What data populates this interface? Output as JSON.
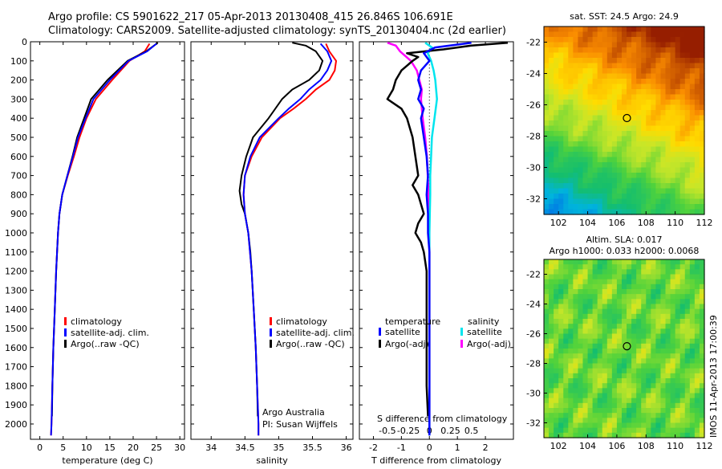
{
  "header": {
    "line1": "Argo profile: CS 5901622_217 05-Apr-2013 20130408_415 26.846S 106.691E",
    "line2": "Climatology: CARS2009. Satellite-adjusted climatology: synTS_20130404.nc (2d earlier)"
  },
  "colors": {
    "climatology": "#ff0000",
    "satellite": "#0000ff",
    "argo": "#000000",
    "sat_sal": "#00e5ee",
    "argo_sal": "#ff00ff"
  },
  "depth_ticks": [
    "0",
    "100",
    "200",
    "300",
    "400",
    "500",
    "600",
    "700",
    "800",
    "900",
    "1000",
    "1100",
    "1200",
    "1300",
    "1400",
    "1500",
    "1600",
    "1700",
    "1800",
    "1900",
    "2000"
  ],
  "chart_data": [
    {
      "type": "line",
      "xlabel": "temperature (deg C)",
      "xlim": [
        -2,
        31
      ],
      "ylim": [
        0,
        2080
      ],
      "y_inverted": true,
      "xticks": [
        "0",
        "5",
        "10",
        "15",
        "20",
        "25",
        "30"
      ],
      "legend": [
        "climatology",
        "satellite-adj. clim.",
        "Argo(..raw -QC)"
      ],
      "series": [
        {
          "name": "climatology",
          "depth": [
            10,
            50,
            100,
            200,
            300,
            400,
            500,
            600,
            700,
            800,
            900,
            1000,
            1200,
            1400,
            1600,
            1800,
            2000,
            2060
          ],
          "values": [
            23.5,
            22.5,
            19.2,
            15.5,
            12.0,
            10.0,
            8.5,
            7.3,
            6.0,
            4.8,
            4.2,
            3.9,
            3.5,
            3.2,
            2.9,
            2.7,
            2.5,
            2.4
          ]
        },
        {
          "name": "satellite-adj. clim.",
          "depth": [
            10,
            50,
            100,
            200,
            300,
            400,
            500,
            600,
            700,
            800,
            900,
            1000,
            1200,
            1400,
            1600,
            1800,
            2000,
            2060
          ],
          "values": [
            25.0,
            23.0,
            19.0,
            15.0,
            11.5,
            9.8,
            8.2,
            7.1,
            5.9,
            4.8,
            4.2,
            3.9,
            3.5,
            3.2,
            2.9,
            2.7,
            2.5,
            2.4
          ]
        },
        {
          "name": "Argo(..raw -QC)",
          "depth": [
            5,
            50,
            100,
            200,
            300,
            400,
            500,
            600,
            700,
            800,
            900,
            1000,
            1200,
            1400,
            1600,
            1800,
            1960
          ],
          "values": [
            25.3,
            22.8,
            18.8,
            14.5,
            11.0,
            9.5,
            8.0,
            7.0,
            5.9,
            4.8,
            4.2,
            3.9,
            3.5,
            3.2,
            2.9,
            2.7,
            2.6
          ]
        }
      ]
    },
    {
      "type": "line",
      "xlabel": "salinity",
      "xlim": [
        33.7,
        36.1
      ],
      "ylim": [
        0,
        2080
      ],
      "y_inverted": true,
      "xticks": [
        "34",
        "34.5",
        "35",
        "35.5",
        "36"
      ],
      "legend": [
        "climatology",
        "satellite-adj. clim.",
        "Argo(..raw -QC)"
      ],
      "annotation": [
        "Argo Australia",
        "PI: Susan Wijffels"
      ],
      "series": [
        {
          "name": "climatology",
          "depth": [
            10,
            50,
            100,
            150,
            200,
            250,
            300,
            350,
            400,
            500,
            600,
            700,
            800,
            900,
            1000,
            1200,
            1400,
            1600,
            1800,
            2000,
            2060
          ],
          "values": [
            35.7,
            35.75,
            35.85,
            35.83,
            35.75,
            35.55,
            35.4,
            35.22,
            35.02,
            34.75,
            34.6,
            34.5,
            34.48,
            34.5,
            34.55,
            34.6,
            34.63,
            34.66,
            34.68,
            34.7,
            34.7
          ]
        },
        {
          "name": "satellite-adj. clim.",
          "depth": [
            10,
            50,
            100,
            150,
            200,
            250,
            300,
            350,
            400,
            500,
            600,
            700,
            800,
            900,
            1000,
            1200,
            1400,
            1600,
            1800,
            2000,
            2060
          ],
          "values": [
            35.62,
            35.72,
            35.78,
            35.72,
            35.62,
            35.45,
            35.32,
            35.15,
            35.0,
            34.72,
            34.58,
            34.5,
            34.48,
            34.5,
            34.55,
            34.6,
            34.63,
            34.66,
            34.68,
            34.7,
            34.7
          ]
        },
        {
          "name": "Argo(..raw -QC)",
          "depth": [
            5,
            20,
            50,
            100,
            150,
            200,
            250,
            300,
            350,
            400,
            500,
            600,
            700,
            780,
            850,
            900,
            1000,
            1100,
            1200,
            1400,
            1600,
            1800,
            1960
          ],
          "values": [
            35.2,
            35.4,
            35.55,
            35.65,
            35.6,
            35.45,
            35.2,
            35.05,
            34.95,
            34.85,
            34.62,
            34.52,
            34.45,
            34.42,
            34.45,
            34.5,
            34.55,
            34.58,
            34.6,
            34.63,
            34.66,
            34.68,
            34.69
          ]
        }
      ]
    },
    {
      "type": "line",
      "xlabel": "T difference from climatology",
      "x2label": "S difference from climatology",
      "xlim": [
        -2.5,
        3
      ],
      "ylim": [
        0,
        2080
      ],
      "y_inverted": true,
      "xticks": [
        "-2",
        "-1",
        "0",
        "1",
        "2"
      ],
      "x2ticks": [
        "-0.5",
        "-0.25",
        "0",
        "0.25",
        "0.5"
      ],
      "legend_t_title": "temperature",
      "legend_s_title": "salinity",
      "legend_t": [
        "satellite",
        "Argo(-adj)"
      ],
      "legend_s": [
        "satellite",
        "Argo(-adj)"
      ],
      "series": [
        {
          "name": "temperature satellite",
          "depth": [
            5,
            30,
            60,
            100,
            150,
            200,
            250,
            300,
            350,
            400,
            500,
            600,
            700,
            800,
            900,
            1000,
            1100,
            1200,
            1500,
            1800,
            2060
          ],
          "values": [
            1.5,
            0.2,
            -0.2,
            0.0,
            -0.3,
            -0.4,
            -0.3,
            -0.4,
            -0.2,
            -0.3,
            -0.2,
            -0.1,
            -0.05,
            -0.1,
            -0.05,
            -0.05,
            0.0,
            0.0,
            0.0,
            0.0,
            0.0
          ]
        },
        {
          "name": "temperature Argo(-adj)",
          "depth": [
            5,
            20,
            40,
            60,
            80,
            100,
            150,
            200,
            250,
            300,
            350,
            400,
            450,
            500,
            600,
            700,
            750,
            800,
            850,
            900,
            950,
            1000,
            1050,
            1100,
            1200,
            1400,
            1600,
            1800,
            1960
          ],
          "values": [
            2.8,
            1.5,
            0.5,
            -0.8,
            -0.4,
            -0.6,
            -1.0,
            -1.2,
            -1.3,
            -1.5,
            -1.0,
            -0.8,
            -0.7,
            -0.6,
            -0.5,
            -0.4,
            -0.6,
            -0.4,
            -0.3,
            -0.2,
            -0.4,
            -0.5,
            -0.3,
            -0.2,
            -0.1,
            -0.1,
            -0.1,
            -0.1,
            -0.05
          ]
        },
        {
          "name": "salinity satellite",
          "depth": [
            5,
            30,
            60,
            100,
            150,
            200,
            300,
            400,
            500,
            600,
            700,
            800,
            900,
            1000,
            1200,
            1500,
            1800,
            2060
          ],
          "values": [
            -0.05,
            0.03,
            -0.02,
            0.02,
            0.05,
            0.07,
            0.09,
            0.06,
            0.03,
            0.02,
            0.01,
            0.01,
            0.005,
            0.0,
            0.0,
            0.0,
            0.0,
            0.0
          ]
        },
        {
          "name": "salinity Argo(-adj)",
          "depth": [
            5,
            20,
            50,
            100,
            150,
            200,
            250,
            300,
            400,
            500,
            600,
            700,
            800,
            900,
            1000,
            1200,
            1500,
            1800,
            1960
          ],
          "values": [
            -0.5,
            -0.4,
            -0.35,
            -0.22,
            -0.15,
            -0.12,
            -0.09,
            -0.1,
            -0.08,
            -0.05,
            -0.03,
            -0.02,
            -0.01,
            0.0,
            0.0,
            0.0,
            0.0,
            0.0,
            0.0
          ]
        }
      ]
    },
    {
      "type": "heatmap",
      "title": "sat. SST: 24.5 Argo: 24.9",
      "xlim": [
        101,
        112
      ],
      "ylim": [
        -33,
        -21
      ],
      "xticks": [
        "102",
        "104",
        "106",
        "108",
        "110",
        "112"
      ],
      "yticks": [
        "-22",
        "-24",
        "-26",
        "-28",
        "-30",
        "-32"
      ],
      "marker": {
        "lon": 106.691,
        "lat": -26.846
      }
    },
    {
      "type": "heatmap",
      "title": "Altim. SLA: 0.017",
      "subtitle": "Argo h1000: 0.033 h2000: 0.0068",
      "xlim": [
        101,
        112
      ],
      "ylim": [
        -33,
        -21
      ],
      "xticks": [
        "102",
        "104",
        "106",
        "108",
        "110",
        "112"
      ],
      "yticks": [
        "-22",
        "-24",
        "-26",
        "-28",
        "-30",
        "-32"
      ],
      "marker": {
        "lon": 106.691,
        "lat": -26.846
      }
    }
  ],
  "side_label": "IMOS 11-Apr-2013 17:00:39"
}
